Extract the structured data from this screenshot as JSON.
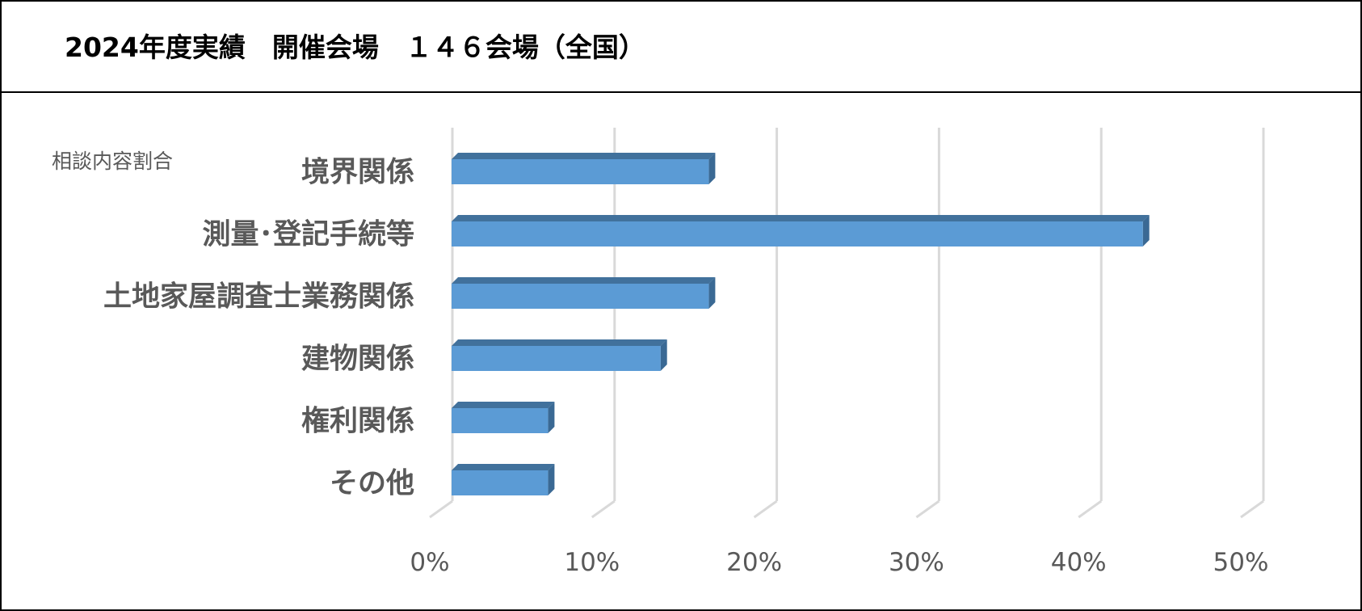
{
  "title": "2024年度実績　開催会場　１４６会場（全国）",
  "chart_data": {
    "type": "bar",
    "orientation": "horizontal",
    "label": "相談内容割合",
    "categories": [
      "境界関係",
      "測量･登記手続等",
      "土地家屋調査士業務関係",
      "建物関係",
      "権利関係",
      "その他"
    ],
    "values": [
      16,
      43,
      16,
      13,
      6,
      6
    ],
    "xlim": [
      0,
      50
    ],
    "ticks": [
      "0%",
      "10%",
      "20%",
      "30%",
      "40%",
      "50%"
    ],
    "grid": true,
    "legend": "none",
    "colors": {
      "bar_front": "#5B9BD5",
      "bar_top": "#41719C",
      "bar_side": "#3A6994",
      "grid": "#D9D9D9",
      "text": "#595959"
    }
  }
}
